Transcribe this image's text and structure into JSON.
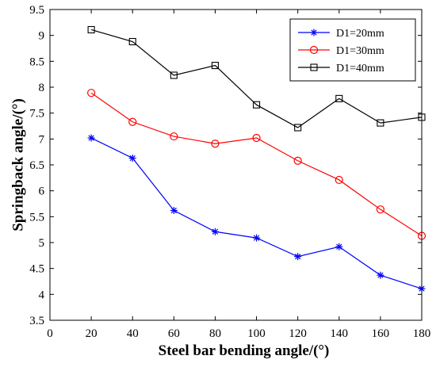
{
  "chart_data": {
    "type": "line",
    "title": "",
    "xlabel": "Steel bar bending angle/(°)",
    "ylabel": "Springback angle/(°)",
    "xlim": [
      0,
      180
    ],
    "ylim": [
      3.5,
      9.5
    ],
    "xticks": [
      0,
      20,
      40,
      60,
      80,
      100,
      120,
      140,
      160,
      180
    ],
    "yticks": [
      3.5,
      4,
      4.5,
      5,
      5.5,
      6,
      6.5,
      7,
      7.5,
      8,
      8.5,
      9,
      9.5
    ],
    "grid": false,
    "legend_position": "top-right",
    "x": [
      20,
      40,
      60,
      80,
      100,
      120,
      140,
      160,
      180
    ],
    "series": [
      {
        "name": "D1=20mm",
        "color": "#0000ff",
        "marker": "asterisk",
        "values": [
          7.02,
          6.63,
          5.62,
          5.21,
          5.09,
          4.73,
          4.92,
          4.37,
          4.11
        ]
      },
      {
        "name": "D1=30mm",
        "color": "#ff0000",
        "marker": "circle",
        "values": [
          7.89,
          7.33,
          7.05,
          6.91,
          7.02,
          6.58,
          6.21,
          5.64,
          5.13
        ]
      },
      {
        "name": "D1=40mm",
        "color": "#000000",
        "marker": "square",
        "values": [
          9.11,
          8.88,
          8.23,
          8.42,
          7.66,
          7.22,
          7.78,
          7.31,
          7.42
        ]
      }
    ]
  }
}
